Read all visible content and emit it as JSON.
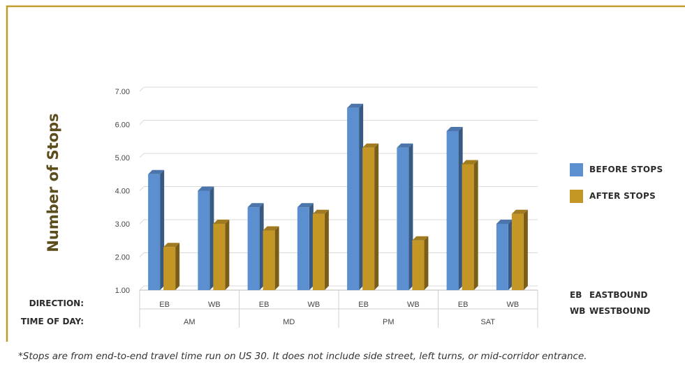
{
  "colors": {
    "border": "#c19a2c",
    "before": "#5b8fd0",
    "after": "#c49626",
    "grid": "#d9d9d9",
    "ylabel": "#5c4d1c"
  },
  "row_labels": {
    "direction": "DIRECTION:",
    "time_of_day": "TIME OF DAY:"
  },
  "key": [
    {
      "abbr": "EB",
      "text": "EASTBOUND"
    },
    {
      "abbr": "WB",
      "text": "WESTBOUND"
    }
  ],
  "footnote": "*Stops are from end-to-end travel time run on US 30. It does not include side street, left turns, or mid-corridor entrance.",
  "chart_data": {
    "type": "bar",
    "title": "",
    "xlabel": "",
    "ylabel": "Number of Stops",
    "ylim": [
      1,
      7
    ],
    "yticks": [
      "1.00",
      "2.00",
      "3.00",
      "4.00",
      "5.00",
      "6.00",
      "7.00"
    ],
    "grid": true,
    "legend_position": "right",
    "groups": [
      {
        "label": "AM",
        "categories": [
          "EB",
          "WB"
        ]
      },
      {
        "label": "MD",
        "categories": [
          "EB",
          "WB"
        ]
      },
      {
        "label": "PM",
        "categories": [
          "EB",
          "WB"
        ]
      },
      {
        "label": "SAT",
        "categories": [
          "EB",
          "WB"
        ]
      }
    ],
    "categories": [
      "EB",
      "WB",
      "EB",
      "WB",
      "EB",
      "WB",
      "EB",
      "WB"
    ],
    "series": [
      {
        "name": "BEFORE STOPS",
        "values": [
          4.5,
          4.0,
          3.5,
          3.5,
          6.5,
          5.3,
          5.8,
          3.0
        ]
      },
      {
        "name": "AFTER STOPS",
        "values": [
          2.3,
          3.0,
          2.8,
          3.3,
          5.3,
          2.5,
          4.8,
          3.3
        ]
      }
    ]
  }
}
